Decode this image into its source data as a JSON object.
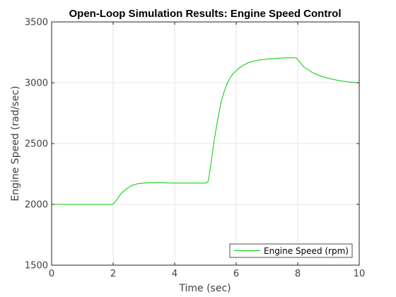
{
  "chart_data": {
    "type": "line",
    "title": "Open-Loop Simulation Results: Engine Speed Control",
    "xlabel": "Time (sec)",
    "ylabel": "Engine Speed (rad/sec)",
    "xlim": [
      0,
      10
    ],
    "ylim": [
      1500,
      3500
    ],
    "xticks": [
      0,
      2,
      4,
      6,
      8,
      10
    ],
    "xtick_labels": [
      "0",
      "2",
      "4",
      "6",
      "8",
      "10"
    ],
    "yticks": [
      1500,
      2000,
      2500,
      3000,
      3500
    ],
    "ytick_labels": [
      "1500",
      "2000",
      "2500",
      "3000",
      "3500"
    ],
    "grid": true,
    "legend_position": "bottom-right",
    "series": [
      {
        "name": "Engine Speed (rpm)",
        "color": "#00cc00",
        "x": [
          0,
          1.0,
          1.99,
          2.1,
          2.2,
          2.3,
          2.45,
          2.6,
          2.8,
          3.0,
          3.3,
          3.5,
          3.7,
          4.0,
          4.5,
          5.0,
          5.08,
          5.12,
          5.2,
          5.3,
          5.4,
          5.5,
          5.6,
          5.7,
          5.8,
          5.9,
          6.0,
          6.2,
          6.4,
          6.7,
          7.0,
          7.3,
          7.6,
          7.95,
          8.0,
          8.2,
          8.5,
          8.8,
          9.1,
          9.4,
          9.7,
          10.0
        ],
        "y": [
          2000,
          2000,
          2000,
          2030,
          2070,
          2100,
          2130,
          2155,
          2170,
          2175,
          2178,
          2180,
          2176,
          2175,
          2175,
          2175,
          2185,
          2230,
          2370,
          2550,
          2700,
          2830,
          2920,
          2990,
          3040,
          3075,
          3100,
          3140,
          3165,
          3185,
          3195,
          3200,
          3205,
          3205,
          3190,
          3130,
          3080,
          3050,
          3030,
          3015,
          3005,
          3000
        ]
      }
    ]
  }
}
